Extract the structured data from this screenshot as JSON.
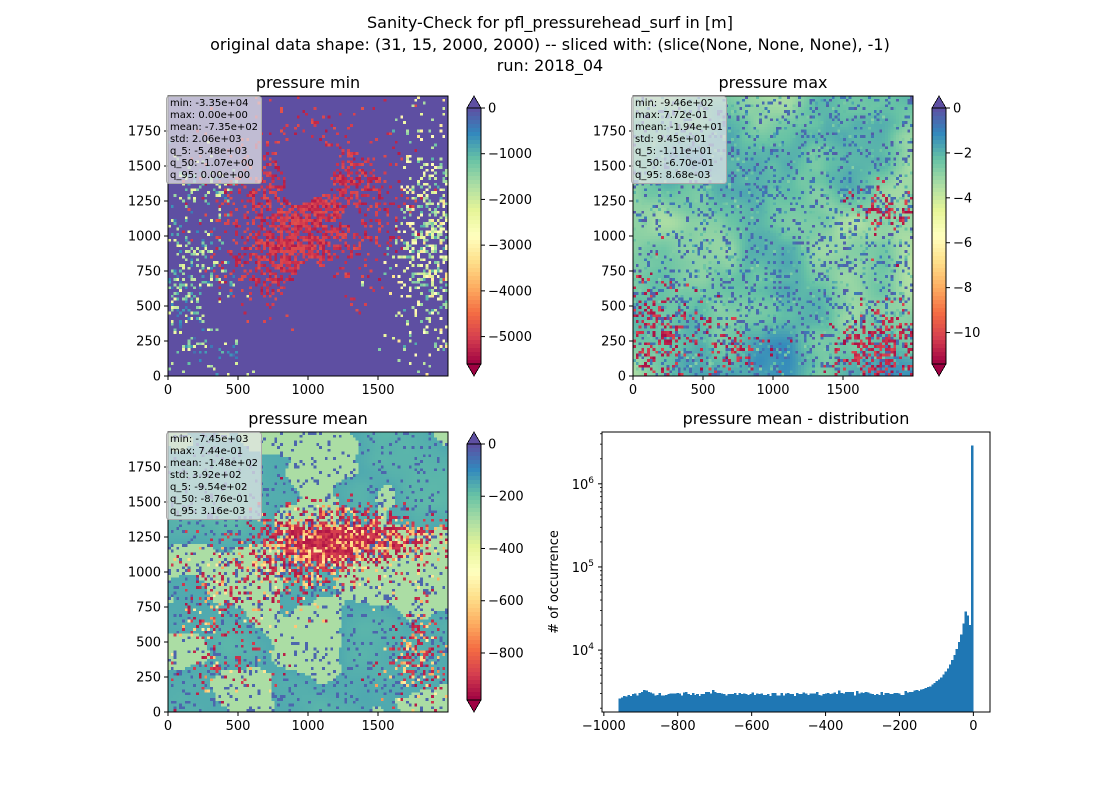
{
  "figure": {
    "title_lines": [
      "Sanity-Check for pfl_pressurehead_surf in [m]",
      "original data shape: (31, 15, 2000, 2000) -- sliced with: (slice(None, None, None), -1)",
      "run: 2018_04"
    ]
  },
  "chart_data": [
    {
      "type": "heatmap",
      "title": "pressure min",
      "xlim": [
        0,
        2000
      ],
      "ylim": [
        0,
        2000
      ],
      "xticks": [
        0,
        500,
        1000,
        1500
      ],
      "yticks": [
        0,
        250,
        500,
        750,
        1000,
        1250,
        1500,
        1750
      ],
      "colormap": "Spectral",
      "colorbar": {
        "range": [
          -5600,
          0
        ],
        "ticks": [
          0,
          -1000,
          -2000,
          -3000,
          -4000,
          -5000
        ],
        "tick_labels": [
          "0",
          "−1000",
          "−2000",
          "−3000",
          "−4000",
          "−5000"
        ],
        "extend": "both"
      },
      "stats": [
        "min: -3.35e+04",
        "max: 0.00e+00",
        "mean: -7.35e+02",
        "std: 2.06e+03",
        "q_5: -5.48e+03",
        "q_50: -1.07e+00",
        "q_95: 0.00e+00"
      ]
    },
    {
      "type": "heatmap",
      "title": "pressure max",
      "xlim": [
        0,
        2000
      ],
      "ylim": [
        0,
        2000
      ],
      "xticks": [
        0,
        500,
        1000,
        1500
      ],
      "yticks": [
        0,
        250,
        500,
        750,
        1000,
        1250,
        1500,
        1750
      ],
      "colormap": "Spectral",
      "colorbar": {
        "range": [
          -11.4,
          0
        ],
        "ticks": [
          0,
          -2,
          -4,
          -6,
          -8,
          -10
        ],
        "tick_labels": [
          "0",
          "−2",
          "−4",
          "−6",
          "−8",
          "−10"
        ],
        "extend": "both"
      },
      "stats": [
        "min: -9.46e+02",
        "max: 7.72e-01",
        "mean: -1.94e+01",
        "std: 9.45e+01",
        "q_5: -1.11e+01",
        "q_50: -6.70e-01",
        "q_95: 8.68e-03"
      ]
    },
    {
      "type": "heatmap",
      "title": "pressure mean",
      "xlim": [
        0,
        2000
      ],
      "ylim": [
        0,
        2000
      ],
      "xticks": [
        0,
        500,
        1000,
        1500
      ],
      "yticks": [
        0,
        250,
        500,
        750,
        1000,
        1250,
        1500,
        1750
      ],
      "colormap": "Spectral",
      "colorbar": {
        "range": [
          -980,
          0
        ],
        "ticks": [
          0,
          -200,
          -400,
          -600,
          -800
        ],
        "tick_labels": [
          "0",
          "−200",
          "−400",
          "−600",
          "−800"
        ],
        "extend": "both"
      },
      "stats": [
        "min: -7.45e+03",
        "max: 7.44e-01",
        "mean: -1.48e+02",
        "std: 3.92e+02",
        "q_5: -9.54e+02",
        "q_50: -8.76e-01",
        "q_95: 3.16e-03"
      ]
    },
    {
      "type": "bar",
      "title": "pressure mean - distribution",
      "ylabel": "# of occurrence",
      "yscale": "log",
      "color": "#1f77b4",
      "xlim": [
        -1005,
        45
      ],
      "ylim": [
        1800,
        4200000
      ],
      "xticks": [
        -1000,
        -800,
        -600,
        -400,
        -200,
        0
      ],
      "xtick_labels": [
        "−1000",
        "−800",
        "−600",
        "−400",
        "−200",
        "0"
      ],
      "yticks": [
        10000,
        100000,
        1000000
      ],
      "ytick_labels": [
        "10^4",
        "10^5",
        "10^6"
      ],
      "bin_range": [
        -960,
        0
      ],
      "bin_counts": [
        2600,
        2700,
        2800,
        2750,
        2900,
        2800,
        2950,
        3000,
        2850,
        3050,
        3150,
        3300,
        3250,
        3150,
        3100,
        3000,
        2850,
        2900,
        3050,
        2850,
        2850,
        2900,
        2950,
        3000,
        3000,
        3000,
        3050,
        3000,
        2850,
        3100,
        3150,
        2950,
        2900,
        3050,
        2900,
        2950,
        2800,
        2950,
        2950,
        3150,
        3150,
        3000,
        3300,
        3150,
        3050,
        3050,
        3000,
        2950,
        2850,
        2950,
        2950,
        2950,
        3050,
        2900,
        3050,
        2950,
        3000,
        2950,
        2900,
        2950,
        3100,
        2900,
        3000,
        2950,
        3000,
        2900,
        2900,
        2950,
        2800,
        3050,
        3050,
        2850,
        2850,
        3050,
        2850,
        3000,
        3050,
        2950,
        2950,
        2800,
        3050,
        2950,
        2950,
        3100,
        3000,
        2900,
        3000,
        3000,
        3000,
        3150,
        2900,
        2850,
        2950,
        3000,
        3050,
        2950,
        3000,
        3100,
        2950,
        3250,
        3050,
        3000,
        3150,
        3150,
        3150,
        3150,
        2850,
        3200,
        3000,
        3100,
        3050,
        3150,
        3100,
        3000,
        2950,
        2900,
        2950,
        2900,
        3150,
        2900,
        3050,
        3050,
        2950,
        2950,
        3050,
        3050,
        3000,
        2900,
        2900,
        3200,
        3100,
        3150,
        3150,
        3250,
        3300,
        3200,
        3350,
        3400,
        3500,
        3600,
        3650,
        3850,
        4000,
        4250,
        4400,
        4700,
        5100,
        5500,
        6000,
        6700,
        7600,
        8700,
        10300,
        12500,
        15500,
        21000,
        29000,
        26000,
        20000,
        2900000
      ]
    }
  ]
}
